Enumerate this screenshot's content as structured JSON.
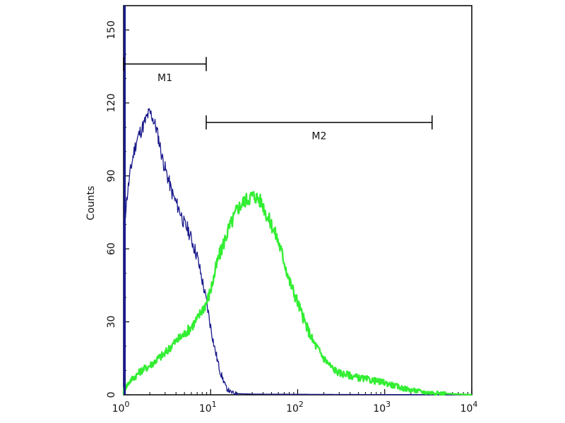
{
  "chart_data": {
    "type": "line",
    "title": "",
    "xlabel": "",
    "ylabel": "Counts",
    "xscale": "log",
    "xlim": [
      1,
      10000
    ],
    "ylim": [
      0,
      160
    ],
    "x_ticks": [
      {
        "value": 1,
        "base": "10",
        "exp": "0"
      },
      {
        "value": 10,
        "base": "10",
        "exp": "1"
      },
      {
        "value": 100,
        "base": "10",
        "exp": "2"
      },
      {
        "value": 1000,
        "base": "10",
        "exp": "3"
      },
      {
        "value": 10000,
        "base": "10",
        "exp": "4"
      }
    ],
    "y_ticks": [
      0,
      30,
      60,
      90,
      120,
      150
    ],
    "y_tick_labels": [
      "0",
      "30",
      "60",
      "90",
      "120",
      "150"
    ],
    "grid": false,
    "markers": [
      {
        "label": "M1",
        "x_start": 1,
        "x_end": 8.9,
        "y": 136
      },
      {
        "label": "M2",
        "x_start": 8.9,
        "x_end": 3500,
        "y": 112
      }
    ],
    "series": [
      {
        "color": "#1a1a8c",
        "x": [
          1,
          1.05,
          1.1,
          1.2,
          1.3,
          1.4,
          1.5,
          1.6,
          1.7,
          1.8,
          1.9,
          2.0,
          2.1,
          2.2,
          2.4,
          2.6,
          2.8,
          3.0,
          3.3,
          3.6,
          4.0,
          4.5,
          5.0,
          5.5,
          6.0,
          7.0,
          8.0,
          9.0,
          10,
          11,
          12,
          13,
          14,
          15,
          17,
          20,
          30,
          100,
          1000,
          10000
        ],
        "y": [
          70,
          75,
          82,
          92,
          99,
          104,
          107,
          109,
          111,
          113,
          115,
          116,
          115,
          113,
          109,
          103,
          97,
          93,
          88,
          83,
          79,
          75,
          70,
          68,
          64,
          57,
          47,
          38,
          28,
          20,
          14,
          9,
          6,
          3,
          1,
          0.5,
          0.3,
          0.2,
          0.1,
          0
        ]
      },
      {
        "color": "#33ee33",
        "x": [
          1,
          1.1,
          1.2,
          1.4,
          1.6,
          2.0,
          2.5,
          3.0,
          3.5,
          4.0,
          5.0,
          6.0,
          7.0,
          8.0,
          9.0,
          10,
          11,
          12,
          14,
          16,
          18,
          20,
          22,
          25,
          28,
          30,
          35,
          40,
          45,
          50,
          60,
          70,
          80,
          100,
          120,
          150,
          200,
          250,
          300,
          400,
          500,
          700,
          1000,
          1500,
          2000,
          3000,
          5000,
          10000
        ],
        "y": [
          2,
          4,
          6,
          8,
          10,
          12,
          15,
          17,
          20,
          22,
          25,
          28,
          31,
          35,
          38,
          43,
          49,
          55,
          62,
          68,
          72,
          76,
          78,
          80,
          81,
          82,
          81,
          78,
          73,
          70,
          63,
          55,
          47,
          38,
          30,
          22,
          15,
          11,
          9,
          8,
          7,
          6,
          5,
          3,
          2,
          1,
          0.5,
          0
        ]
      }
    ]
  }
}
